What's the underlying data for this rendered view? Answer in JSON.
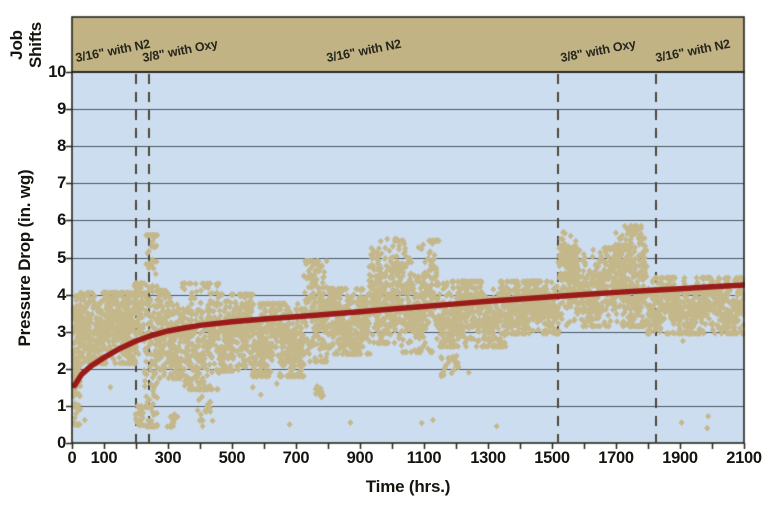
{
  "labels": {
    "job_shifts_line1": "Job",
    "job_shifts_line2": "Shifts",
    "y_axis": "Pressure Drop (in. wg)",
    "x_axis": "Time (hrs.)"
  },
  "chart_data": {
    "type": "scatter",
    "title": "",
    "xlabel": "Time (hrs.)",
    "ylabel": "Pressure Drop (in. wg)",
    "xlim": [
      0,
      2100
    ],
    "ylim": [
      0,
      10
    ],
    "x_labeled_ticks": [
      0,
      100,
      300,
      500,
      700,
      900,
      1100,
      1300,
      1500,
      1700,
      1900,
      2100
    ],
    "x_minor_tick_step": 100,
    "y_tick_min": 0,
    "y_tick_max": 10,
    "y_tick_step": 1,
    "grid": "horizontal",
    "legend": "none",
    "shift_band_title": "Job Shifts",
    "shift_segments": [
      {
        "label": "3/16\" with N2",
        "t_start": 0,
        "t_end": 200,
        "label_t": 10
      },
      {
        "label": "3/8\" with Oxy",
        "t_start": 200,
        "t_end": 240,
        "label_t": 218
      },
      {
        "label": "3/16\" with N2",
        "t_start": 240,
        "t_end": 1520,
        "label_t": 795
      },
      {
        "label": "3/8\" with Oxy",
        "t_start": 1520,
        "t_end": 1825,
        "label_t": 1526
      },
      {
        "label": "3/16\" with N2",
        "t_start": 1825,
        "t_end": 2100,
        "label_t": 1823
      }
    ],
    "event_lines_t": [
      200,
      240,
      1520,
      1825
    ],
    "trend_line": {
      "name": "pressure-drop-trend",
      "points": [
        [
          8,
          1.55
        ],
        [
          30,
          1.85
        ],
        [
          60,
          2.08
        ],
        [
          100,
          2.3
        ],
        [
          150,
          2.55
        ],
        [
          200,
          2.75
        ],
        [
          250,
          2.9
        ],
        [
          300,
          3.02
        ],
        [
          350,
          3.1
        ],
        [
          400,
          3.17
        ],
        [
          500,
          3.27
        ],
        [
          600,
          3.34
        ],
        [
          700,
          3.4
        ],
        [
          800,
          3.47
        ],
        [
          900,
          3.54
        ],
        [
          1000,
          3.61
        ],
        [
          1100,
          3.68
        ],
        [
          1200,
          3.75
        ],
        [
          1300,
          3.82
        ],
        [
          1400,
          3.88
        ],
        [
          1500,
          3.94
        ],
        [
          1600,
          4.0
        ],
        [
          1700,
          4.06
        ],
        [
          1800,
          4.11
        ],
        [
          1900,
          4.16
        ],
        [
          2000,
          4.21
        ],
        [
          2100,
          4.26
        ]
      ]
    },
    "scatter": {
      "name": "pressure-drop-readings",
      "marker": "diamond",
      "clusters": [
        {
          "t0": 5,
          "t1": 25,
          "pLow": 0.5,
          "pHigh": 3.95,
          "n": 150,
          "streak": 4,
          "col": true
        },
        {
          "t0": 25,
          "t1": 200,
          "pLow": 2.15,
          "pHigh": 4.05,
          "n": 600,
          "streak": 7
        },
        {
          "t0": 198,
          "t1": 222,
          "pLow": 0.4,
          "pHigh": 1.0,
          "n": 22,
          "streak": 6
        },
        {
          "t0": 196,
          "t1": 224,
          "pLow": 2.4,
          "pHigh": 4.3,
          "n": 70,
          "streak": 6
        },
        {
          "t0": 226,
          "t1": 266,
          "pLow": 0.45,
          "pHigh": 5.6,
          "n": 170,
          "streak": 5,
          "col": true
        },
        {
          "t0": 266,
          "t1": 345,
          "pLow": 1.75,
          "pHigh": 4.1,
          "n": 240,
          "streak": 7
        },
        {
          "t0": 300,
          "t1": 330,
          "pLow": 0.4,
          "pHigh": 0.8,
          "n": 10,
          "streak": 8
        },
        {
          "t0": 345,
          "t1": 460,
          "pLow": 1.45,
          "pHigh": 4.3,
          "n": 330,
          "streak": 7
        },
        {
          "t0": 392,
          "t1": 442,
          "pLow": 0.45,
          "pHigh": 1.25,
          "n": 16,
          "streak": 9
        },
        {
          "t0": 460,
          "t1": 565,
          "pLow": 1.95,
          "pHigh": 4.0,
          "n": 300,
          "streak": 7
        },
        {
          "t0": 565,
          "t1": 725,
          "pLow": 1.8,
          "pHigh": 3.75,
          "n": 430,
          "streak": 7
        },
        {
          "t0": 725,
          "t1": 795,
          "pLow": 2.2,
          "pHigh": 4.9,
          "n": 220,
          "streak": 6
        },
        {
          "t0": 755,
          "t1": 788,
          "pLow": 1.2,
          "pHigh": 1.6,
          "n": 9,
          "streak": 8
        },
        {
          "t0": 795,
          "t1": 930,
          "pLow": 2.4,
          "pHigh": 4.15,
          "n": 380,
          "streak": 7
        },
        {
          "t0": 930,
          "t1": 1015,
          "pLow": 2.7,
          "pHigh": 5.5,
          "n": 260,
          "streak": 6
        },
        {
          "t0": 1015,
          "t1": 1145,
          "pLow": 2.45,
          "pHigh": 5.45,
          "n": 320,
          "streak": 7
        },
        {
          "t0": 1145,
          "t1": 1360,
          "pLow": 2.6,
          "pHigh": 4.35,
          "n": 520,
          "streak": 7
        },
        {
          "t0": 1148,
          "t1": 1210,
          "pLow": 1.8,
          "pHigh": 2.35,
          "n": 26,
          "streak": 7
        },
        {
          "t0": 1360,
          "t1": 1520,
          "pLow": 2.95,
          "pHigh": 4.35,
          "n": 400,
          "streak": 7
        },
        {
          "t0": 1520,
          "t1": 1795,
          "pLow": 3.15,
          "pHigh": 5.25,
          "n": 640,
          "streak": 7
        },
        {
          "t0": 1528,
          "t1": 1578,
          "pLow": 4.7,
          "pHigh": 5.7,
          "n": 42,
          "streak": 6
        },
        {
          "t0": 1695,
          "t1": 1790,
          "pLow": 4.5,
          "pHigh": 5.85,
          "n": 90,
          "streak": 6
        },
        {
          "t0": 1795,
          "t1": 2100,
          "pLow": 2.95,
          "pHigh": 4.45,
          "n": 640,
          "streak": 7
        }
      ],
      "outliers": [
        [
          40,
          0.62
        ],
        [
          120,
          1.5
        ],
        [
          208,
          0.5
        ],
        [
          214,
          0.75
        ],
        [
          250,
          0.5
        ],
        [
          308,
          0.48
        ],
        [
          318,
          0.55
        ],
        [
          400,
          0.6
        ],
        [
          408,
          0.45
        ],
        [
          420,
          0.85
        ],
        [
          430,
          1.1
        ],
        [
          565,
          1.5
        ],
        [
          590,
          1.3
        ],
        [
          640,
          1.6
        ],
        [
          680,
          0.5
        ],
        [
          770,
          1.35
        ],
        [
          778,
          1.25
        ],
        [
          870,
          0.55
        ],
        [
          1093,
          0.54
        ],
        [
          1128,
          0.62
        ],
        [
          1240,
          1.9
        ],
        [
          1327,
          0.45
        ],
        [
          1905,
          0.55
        ],
        [
          1909,
          2.75
        ],
        [
          1985,
          0.4
        ],
        [
          1988,
          0.72
        ]
      ]
    },
    "colors": {
      "band_fill": "#c1b384",
      "plot_background": "#cdddf0",
      "scatter_point": "#c4b78a",
      "trend_line": "#9a1b18",
      "gridline": "#4a5561",
      "axis_border": "#23231d",
      "event_line": "#4c4738",
      "text": "#15150f"
    }
  }
}
